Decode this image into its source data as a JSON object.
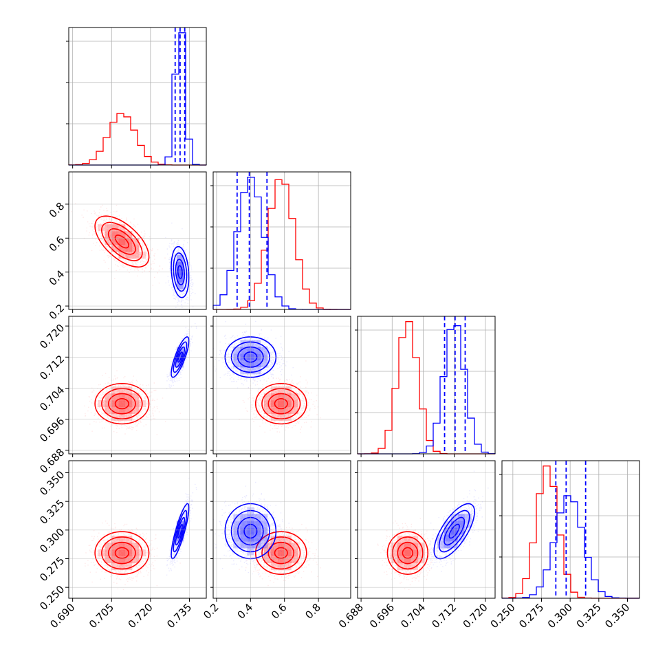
{
  "chart_data": {
    "type": "corner",
    "grid": true,
    "colors": {
      "red": "#ff0000",
      "blue": "#0000ff"
    },
    "parameters": [
      {
        "range": [
          0.6885,
          0.7415
        ],
        "ticks": [
          0.69,
          0.705,
          0.72,
          0.735
        ],
        "tick_labels": [
          "0.690",
          "0.705",
          "0.720",
          "0.735"
        ]
      },
      {
        "range": [
          0.18,
          0.99
        ],
        "ticks": [
          0.2,
          0.4,
          0.6,
          0.8
        ],
        "tick_labels": [
          "0.2",
          "0.4",
          "0.6",
          "0.8"
        ]
      },
      {
        "range": [
          0.6871,
          0.7225
        ],
        "ticks": [
          0.688,
          0.696,
          0.704,
          0.712,
          0.72
        ],
        "tick_labels": [
          "0.688",
          "0.696",
          "0.704",
          "0.712",
          "0.720"
        ]
      },
      {
        "range": [
          0.2405,
          0.3605
        ],
        "ticks": [
          0.25,
          0.275,
          0.3,
          0.325,
          0.35
        ],
        "tick_labels": [
          "0.250",
          "0.275",
          "0.300",
          "0.325",
          "0.350"
        ]
      }
    ],
    "series": [
      {
        "color": "#ff0000",
        "mean": [
          0.709,
          0.58,
          0.7,
          0.28
        ],
        "sd": [
          0.0052,
          0.075,
          0.0026,
          0.0093
        ],
        "corr": [
          [
            1,
            -0.6,
            0,
            0
          ],
          [
            -0.6,
            1,
            0,
            0
          ],
          [
            0,
            0,
            1,
            0
          ],
          [
            0,
            0,
            0,
            1
          ]
        ],
        "quantiles": null
      },
      {
        "color": "#0000ff",
        "mean": [
          0.7314,
          0.4,
          0.712,
          0.299
        ],
        "sd": [
          0.0017,
          0.075,
          0.0026,
          0.012
        ],
        "corr": [
          [
            1,
            -0.2,
            0.8,
            0.85
          ],
          [
            -0.2,
            1,
            0,
            0
          ],
          [
            0.8,
            0,
            1,
            0.7
          ],
          [
            0.85,
            0,
            0.7,
            1
          ]
        ],
        "quantiles": [
          [
            0.7295,
            0.7314,
            0.7332
          ],
          [
            0.321,
            0.393,
            0.497
          ],
          [
            0.7095,
            0.7122,
            0.7148
          ],
          [
            0.2875,
            0.2965,
            0.3135
          ]
        ]
      }
    ]
  }
}
